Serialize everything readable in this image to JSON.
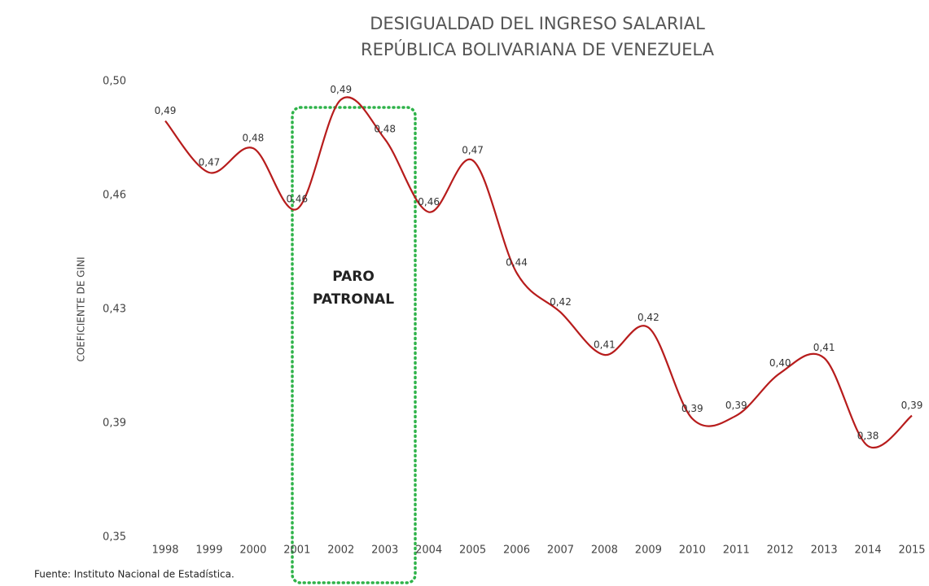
{
  "chart_data": {
    "type": "line",
    "title": [
      "DESIGUALDAD DEL INGRESO SALARIAL",
      "REPÚBLICA BOLIVARIANA DE VENEZUELA"
    ],
    "y_label": "COEFICIENTE DE GINI",
    "source": "Fuente: Instituto Nacional de Estadística.",
    "annotation": [
      "PARO",
      "PATRONAL"
    ],
    "categories": [
      "1998",
      "1999",
      "2000",
      "2001",
      "2002",
      "2003",
      "2004",
      "2005",
      "2006",
      "2007",
      "2008",
      "2009",
      "2010",
      "2011",
      "2012",
      "2013",
      "2014",
      "2015"
    ],
    "series": [
      {
        "name": "Gini",
        "color": "#b71c1c",
        "values": [
          0.487,
          0.47,
          0.478,
          0.458,
          0.494,
          0.481,
          0.457,
          0.474,
          0.437,
          0.424,
          0.41,
          0.419,
          0.389,
          0.39,
          0.404,
          0.409,
          0.38,
          0.39
        ],
        "value_labels": [
          "0,49",
          "0,47",
          "0,48",
          "0,46",
          "0,49",
          "0,48",
          "0,46",
          "0,47",
          "0,44",
          "0,42",
          "0,41",
          "0,42",
          "0,39",
          "0,39",
          "0,40",
          "0,41",
          "0,38",
          "0,39"
        ]
      }
    ],
    "ylim": [
      0.35,
      0.5
    ],
    "yticks": [
      {
        "value": 0.35,
        "label": "0,35"
      },
      {
        "value": 0.3875,
        "label": "0,39"
      },
      {
        "value": 0.425,
        "label": "0,43"
      },
      {
        "value": 0.4625,
        "label": "0,46"
      },
      {
        "value": 0.5,
        "label": "0,50"
      }
    ],
    "grid": false
  }
}
